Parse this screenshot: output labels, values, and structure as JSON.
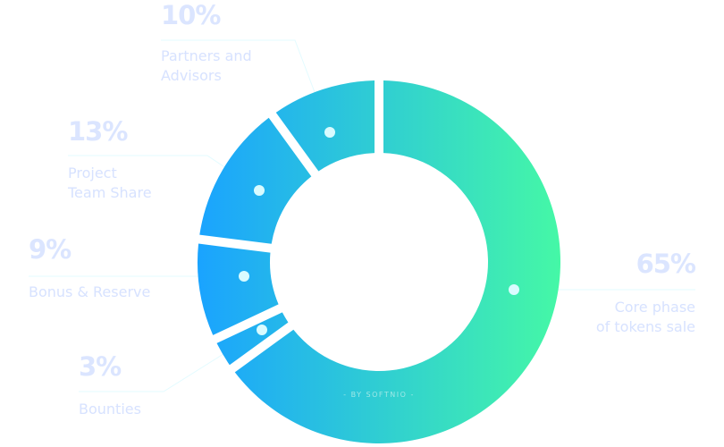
{
  "chart_data": {
    "type": "pie",
    "variant": "donut",
    "start": "top",
    "direction": "clockwise",
    "segments": [
      {
        "label": "Core phase\nof tokens sale",
        "value": 65,
        "value_label": "65%"
      },
      {
        "label": "Bounties",
        "value": 3,
        "value_label": "3%"
      },
      {
        "label": "Bonus & Reserve",
        "value": 9,
        "value_label": "9%"
      },
      {
        "label": "Project\nTeam Share",
        "value": 13,
        "value_label": "13%"
      },
      {
        "label": "Partners and\nAdvisors",
        "value": 10,
        "value_label": "10%"
      }
    ],
    "gradient": {
      "from": "#1aa3ff",
      "to": "#45f8a6",
      "direction": "left-to-right"
    },
    "marker_color": "#d9fbff",
    "label_color": "#dbe5ff"
  },
  "credit": "- BY SOFTNIO -"
}
